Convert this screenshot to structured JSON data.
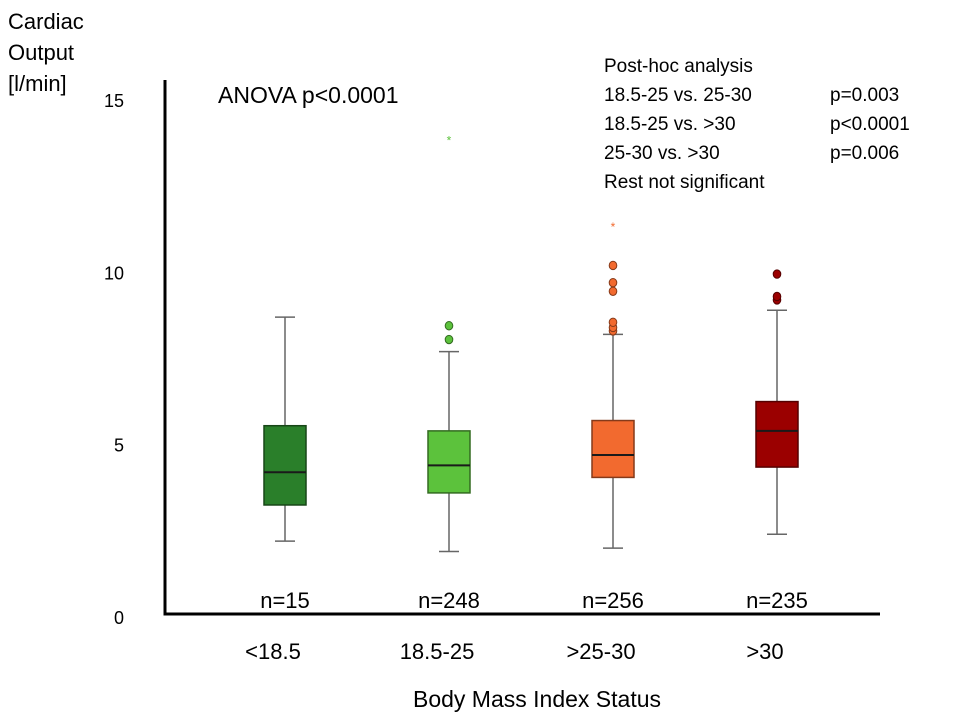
{
  "chart_data": {
    "type": "box",
    "ylabel_lines": [
      "Cardiac",
      "Output",
      "[l/min]"
    ],
    "xlabel": "Body Mass Index Status",
    "ylim": [
      0,
      15
    ],
    "yticks": [
      0,
      5,
      10,
      15
    ],
    "grid": false,
    "categories": [
      {
        "label": "<18.5",
        "n_label": "n=15",
        "color": "#2a7f2a",
        "min": 2.2,
        "q1": 3.25,
        "median": 4.2,
        "q3": 5.55,
        "max": 8.7,
        "outliers": []
      },
      {
        "label": "18.5-25",
        "n_label": "n=248",
        "color": "#5cc23c",
        "min": 1.9,
        "q1": 3.6,
        "median": 4.4,
        "q3": 5.4,
        "max": 7.7,
        "outliers": [
          {
            "y": 8.05,
            "marker": "dot"
          },
          {
            "y": 8.45,
            "marker": "dot"
          },
          {
            "y": 13.85,
            "marker": "star"
          }
        ]
      },
      {
        "label": ">25-30",
        "n_label": "n=256",
        "color": "#f26a2f",
        "min": 2.0,
        "q1": 4.05,
        "median": 4.7,
        "q3": 5.7,
        "max": 8.2,
        "outliers": [
          {
            "y": 8.3,
            "marker": "dot"
          },
          {
            "y": 8.4,
            "marker": "dot"
          },
          {
            "y": 8.55,
            "marker": "dot"
          },
          {
            "y": 9.45,
            "marker": "dot"
          },
          {
            "y": 9.7,
            "marker": "dot"
          },
          {
            "y": 10.2,
            "marker": "dot"
          },
          {
            "y": 11.35,
            "marker": "star"
          }
        ]
      },
      {
        "label": ">30",
        "n_label": "n=235",
        "color": "#9b0000",
        "min": 2.4,
        "q1": 4.35,
        "median": 5.4,
        "q3": 6.25,
        "max": 8.9,
        "outliers": [
          {
            "y": 9.2,
            "marker": "dot"
          },
          {
            "y": 9.3,
            "marker": "dot"
          },
          {
            "y": 9.95,
            "marker": "dot"
          }
        ]
      }
    ],
    "annotation": "ANOVA p<0.0001",
    "posthoc": {
      "title": "Post-hoc analysis",
      "rows": [
        {
          "comparison": "18.5-25 vs. 25-30",
          "p": "p=0.003"
        },
        {
          "comparison": "18.5-25 vs. >30",
          "p": "p<0.0001"
        },
        {
          "comparison": "25-30 vs. >30",
          "p": "p=0.006"
        }
      ],
      "footer": "Rest not significant"
    }
  }
}
